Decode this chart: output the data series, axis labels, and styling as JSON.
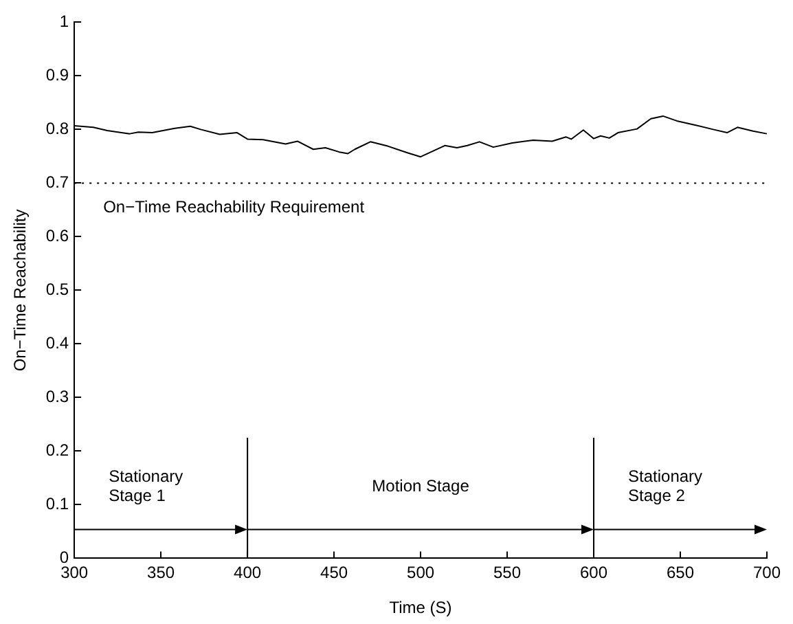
{
  "chart_data": {
    "type": "line",
    "xlabel": "Time (S)",
    "ylabel": "On−Time Reachability",
    "xlim": [
      300,
      700
    ],
    "ylim": [
      0,
      1
    ],
    "xticks": [
      300,
      350,
      400,
      450,
      500,
      550,
      600,
      650,
      700
    ],
    "yticks": [
      0,
      0.1,
      0.2,
      0.3,
      0.4,
      0.5,
      0.6,
      0.7,
      0.8,
      0.9,
      1
    ],
    "grid": false,
    "legend": false,
    "marker": "none",
    "line_style": "solid",
    "series": [
      {
        "color": "#000000",
        "x": [
          300,
          311,
          319,
          332,
          337,
          345,
          358,
          367,
          373,
          384,
          394,
          400,
          409,
          422,
          429,
          438,
          445,
          453,
          458,
          462,
          471,
          481,
          492,
          500,
          514,
          521,
          527,
          534,
          542,
          553,
          565,
          576,
          584,
          587,
          594,
          600,
          604,
          609,
          614,
          625,
          633,
          640,
          648,
          659,
          669,
          677,
          683,
          692,
          700
        ],
        "values": [
          0.807,
          0.804,
          0.798,
          0.792,
          0.795,
          0.794,
          0.802,
          0.806,
          0.8,
          0.791,
          0.794,
          0.782,
          0.781,
          0.773,
          0.778,
          0.763,
          0.766,
          0.758,
          0.755,
          0.763,
          0.777,
          0.769,
          0.757,
          0.749,
          0.77,
          0.766,
          0.77,
          0.777,
          0.767,
          0.775,
          0.78,
          0.778,
          0.786,
          0.782,
          0.799,
          0.783,
          0.788,
          0.784,
          0.794,
          0.801,
          0.82,
          0.825,
          0.816,
          0.808,
          0.8,
          0.794,
          0.804,
          0.797,
          0.792
        ]
      },
      {
        "color": "#000000",
        "x": [
          400,
          400
        ],
        "values": [
          0,
          0.225
        ]
      },
      {
        "color": "#000000",
        "x": [
          600,
          600
        ],
        "values": [
          0,
          0.225
        ]
      }
    ],
    "ref_lines": [
      {
        "axis": "y",
        "value": 0.7,
        "label": "On−Time Reachability Requirement",
        "color": "#000000",
        "line_style": "dotted"
      }
    ],
    "annotations": [
      "Stationary\nStage 1",
      "Motion Stage",
      "Stationary\nStage 2"
    ]
  }
}
